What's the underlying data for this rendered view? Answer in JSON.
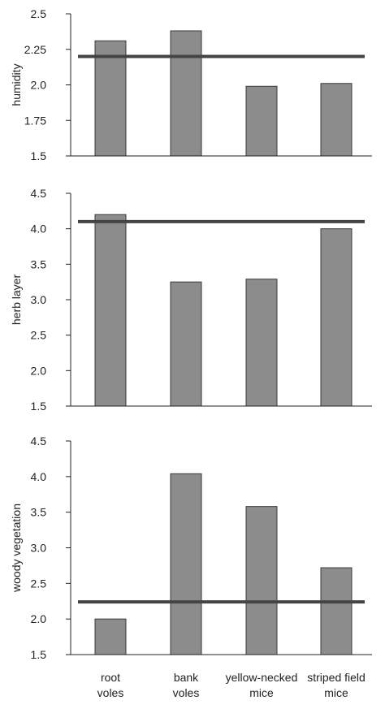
{
  "colors": {
    "bar_fill": "#8c8c8c",
    "bar_stroke": "#3a3a3a",
    "reference_line": "#444444",
    "axis": "#222222"
  },
  "categories": [
    "root\nvoles",
    "bank\nvoles",
    "yellow-necked\nmice",
    "striped field\nmice"
  ],
  "chart_data": [
    {
      "type": "bar",
      "ylabel": "humidity",
      "ylim": [
        1.5,
        2.5
      ],
      "yticks": [
        "1.5",
        "1.75",
        "2.0",
        "2.25",
        "2.5"
      ],
      "tick_values": [
        1.5,
        1.75,
        2.0,
        2.25,
        2.5
      ],
      "categories": [
        "root voles",
        "bank voles",
        "yellow-necked mice",
        "striped field mice"
      ],
      "values": [
        2.31,
        2.38,
        1.99,
        2.01
      ],
      "reference_line": 2.2
    },
    {
      "type": "bar",
      "ylabel": "herb layer",
      "ylim": [
        1.5,
        4.5
      ],
      "yticks": [
        "1.5",
        "2.0",
        "2.5",
        "3.0",
        "3.5",
        "4.0",
        "4.5"
      ],
      "tick_values": [
        1.5,
        2.0,
        2.5,
        3.0,
        3.5,
        4.0,
        4.5
      ],
      "categories": [
        "root voles",
        "bank voles",
        "yellow-necked mice",
        "striped field mice"
      ],
      "values": [
        4.2,
        3.25,
        3.29,
        4.0
      ],
      "reference_line": 4.1
    },
    {
      "type": "bar",
      "ylabel": "woody vegetation",
      "ylim": [
        1.5,
        4.5
      ],
      "yticks": [
        "1.5",
        "2.0",
        "2.5",
        "3.0",
        "3.5",
        "4.0",
        "4.5"
      ],
      "tick_values": [
        1.5,
        2.0,
        2.5,
        3.0,
        3.5,
        4.0,
        4.5
      ],
      "categories": [
        "root voles",
        "bank voles",
        "yellow-necked mice",
        "striped field mice"
      ],
      "values": [
        2.0,
        4.04,
        3.58,
        2.72
      ],
      "reference_line": 2.24
    }
  ]
}
